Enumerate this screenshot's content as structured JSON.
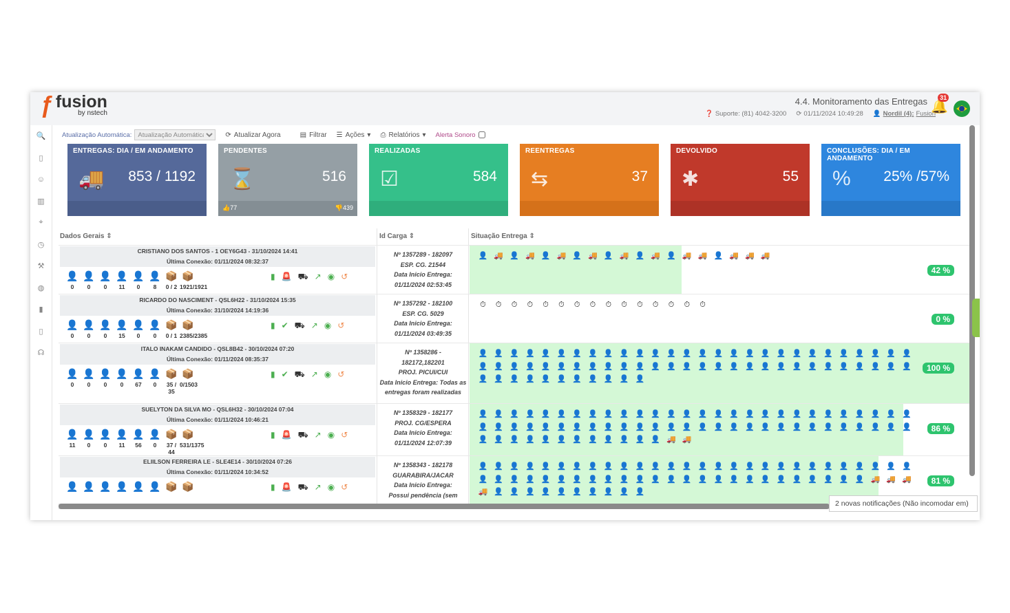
{
  "header": {
    "logo_brand": "fusion",
    "logo_sub": "by nstech",
    "title": "4.4. Monitoramento das Entregas",
    "support": "Suporte: (81) 4042-3200",
    "datetime": "01/11/2024 10:49:28",
    "user": "Nordil (4):",
    "user_company": "Fusion",
    "notif_count": "31"
  },
  "toolbar": {
    "auto_label": "Atualização Automática:",
    "auto_select": "Atualização Automática",
    "refresh": "Atualizar Agora",
    "filter": "Filtrar",
    "actions": "Ações",
    "reports": "Relatórios",
    "sound": "Alerta Sonoro"
  },
  "cards": [
    {
      "title": "ENTREGAS: DIA / EM ANDAMENTO",
      "value": "853 / 1192",
      "color": "#55699a",
      "foot": "#4a5d8a"
    },
    {
      "title": "PENDENTES",
      "value": "516",
      "color": "#959fa5",
      "foot": "#848e94",
      "up": "77",
      "down": "439"
    },
    {
      "title": "REALIZADAS",
      "value": "584",
      "color": "#35c08a",
      "foot": "#2fae7c"
    },
    {
      "title": "REENTREGAS",
      "value": "37",
      "color": "#e67e22",
      "foot": "#d5711a"
    },
    {
      "title": "DEVOLVIDO",
      "value": "55",
      "color": "#c0392b",
      "foot": "#ad3226"
    },
    {
      "title": "CONCLUSÕES: DIA / EM ANDAMENTO",
      "value": "25% /57%",
      "color": "#2e86de",
      "foot": "#2878c8"
    }
  ],
  "grid": {
    "h1": "Dados Gerais",
    "h2": "Id Carga",
    "h3": "Situação Entrega",
    "rows": [
      {
        "name": "CRISTIANO DOS SANTOS - 1 OEY6G43 - 31/10/2024 14:41",
        "conn": "Última Conexão: 01/11/2024 08:32:37",
        "n": [
          "0",
          "0",
          "0",
          "11",
          "0",
          "8",
          "0 / 2",
          "1921/1921"
        ],
        "c1": "Nº 1357289 - 182097",
        "c2": "ESP. CG. 21544",
        "c3": "Data Inicio Entrega:",
        "c4": "01/11/2024 02:53:45",
        "pct": "42 %"
      },
      {
        "name": "RICARDO DO NASCIMENT - QSL6H22 - 31/10/2024 15:35",
        "conn": "Última Conexão: 31/10/2024 14:19:36",
        "n": [
          "0",
          "0",
          "0",
          "15",
          "0",
          "0",
          "0 / 1",
          "2385/2385"
        ],
        "c1": "Nº 1357292 - 182100",
        "c2": "ESP. CG. 5029",
        "c3": "Data Inicio Entrega:",
        "c4": "01/11/2024 03:49:35",
        "pct": "0 %"
      },
      {
        "name": "ITALO INAKAM CANDIDO - QSL8B42 - 30/10/2024 07:20",
        "conn": "Última Conexão: 01/11/2024 08:35:37",
        "n": [
          "0",
          "0",
          "0",
          "0",
          "67",
          "0",
          "35 / 35",
          "0/1503"
        ],
        "c1": "Nº 1358286 -",
        "c2": "182172,182201",
        "c3": "PROJ. PICUI/CUI",
        "c4": "Data Inicio Entrega: Todas as entregas foram realizadas",
        "pct": "100 %"
      },
      {
        "name": "SUELYTON DA SILVA MO - QSL6H32 - 30/10/2024 07:04",
        "conn": "Última Conexão: 01/11/2024 10:46:21",
        "n": [
          "11",
          "0",
          "0",
          "11",
          "56",
          "0",
          "37 / 44",
          "531/1375"
        ],
        "c1": "Nº 1358329 - 182177",
        "c2": "PROJ. CG/ESPERA",
        "c3": "Data Inicio Entrega:",
        "c4": "01/11/2024 12:07:39",
        "pct": "86 %"
      },
      {
        "name": "ELIILSON FERREIRA LE - SLE4E14 - 30/10/2024 07:26",
        "conn": "Última Conexão: 01/11/2024 10:34:52",
        "n": [
          "",
          "",
          "",
          "",
          "",
          "",
          "",
          ""
        ],
        "c1": "Nº 1358343 - 182178",
        "c2": "GUARABIRA/JACAR",
        "c3": "Data Inicio Entrega:",
        "c4": "Possui pendência (sem",
        "pct": "81 %"
      }
    ]
  },
  "toast": "2 novas notificações (Não incomodar em)"
}
